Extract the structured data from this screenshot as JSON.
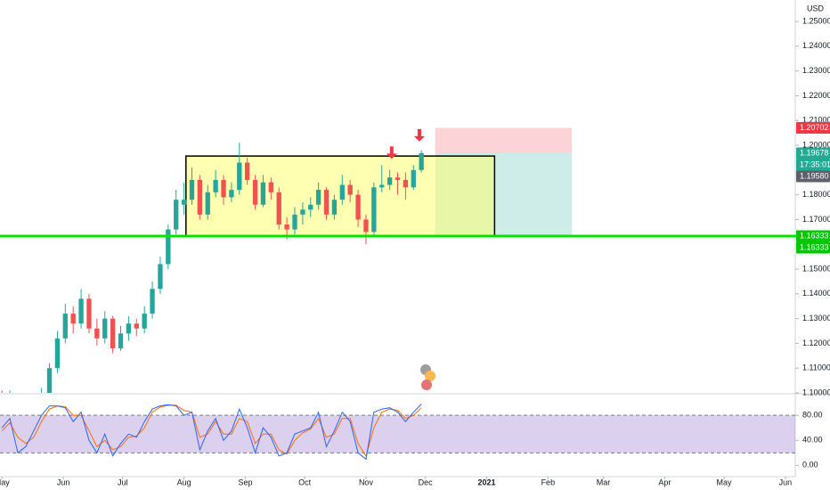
{
  "chart_data": {
    "type": "candlestick",
    "currency": "USD",
    "xlim": [
      -1,
      401
    ],
    "xticks": [
      {
        "value": 0,
        "label": "May"
      },
      {
        "value": 31,
        "label": "Jun"
      },
      {
        "value": 61,
        "label": "Jul"
      },
      {
        "value": 92,
        "label": "Aug"
      },
      {
        "value": 123,
        "label": "Sep"
      },
      {
        "value": 153,
        "label": "Oct"
      },
      {
        "value": 184,
        "label": "Nov"
      },
      {
        "value": 214,
        "label": "Dec"
      },
      {
        "value": 245,
        "label": "2021"
      },
      {
        "value": 276,
        "label": "Feb"
      },
      {
        "value": 304,
        "label": "Mar"
      },
      {
        "value": 335,
        "label": "Apr"
      },
      {
        "value": 365,
        "label": "May"
      },
      {
        "value": 396,
        "label": "Jun"
      }
    ],
    "ylim": [
      1.1,
      1.25866
    ],
    "yticks": [
      {
        "value": 1.25,
        "label": "1.25000"
      },
      {
        "value": 1.24,
        "label": "1.24000"
      },
      {
        "value": 1.23,
        "label": "1.23000"
      },
      {
        "value": 1.22,
        "label": "1.22000"
      },
      {
        "value": 1.21,
        "label": "1.21000"
      },
      {
        "value": 1.2,
        "label": "1.20000"
      },
      {
        "value": 1.18,
        "label": "1.18000"
      },
      {
        "value": 1.17,
        "label": "1.17000"
      },
      {
        "value": 1.15,
        "label": "1.15000"
      },
      {
        "value": 1.14,
        "label": "1.14000"
      },
      {
        "value": 1.13,
        "label": "1.13000"
      },
      {
        "value": 1.12,
        "label": "1.12000"
      },
      {
        "value": 1.11,
        "label": "1.11000"
      },
      {
        "value": 1.1,
        "label": "1.10000"
      }
    ],
    "up_color": "#26a69a",
    "down_color": "#ef5350",
    "candles": {
      "x": [
        0,
        4,
        8,
        12,
        16,
        20,
        24,
        28,
        32,
        36,
        40,
        44,
        48,
        52,
        56,
        60,
        64,
        68,
        72,
        76,
        80,
        84,
        88,
        92,
        96,
        100,
        104,
        108,
        112,
        116,
        120,
        124,
        128,
        132,
        136,
        140,
        144,
        148,
        152,
        156,
        160,
        164,
        168,
        172,
        176,
        180,
        184,
        188,
        192,
        196,
        200,
        204,
        208,
        212
      ],
      "ohlc": [
        [
          1.099,
          1.101,
          1.095,
          1.097
        ],
        [
          1.097,
          1.101,
          1.095,
          1.099
        ],
        [
          1.099,
          1.1,
          1.09,
          1.092
        ],
        [
          1.092,
          1.097,
          1.09,
          1.095
        ],
        [
          1.095,
          1.1,
          1.094,
          1.098
        ],
        [
          1.098,
          1.102,
          1.096,
          1.1
        ],
        [
          1.1,
          1.112,
          1.099,
          1.11
        ],
        [
          1.11,
          1.125,
          1.108,
          1.122
        ],
        [
          1.122,
          1.136,
          1.12,
          1.132
        ],
        [
          1.132,
          1.135,
          1.124,
          1.128
        ],
        [
          1.128,
          1.142,
          1.126,
          1.138
        ],
        [
          1.138,
          1.14,
          1.124,
          1.126
        ],
        [
          1.126,
          1.13,
          1.119,
          1.122
        ],
        [
          1.122,
          1.133,
          1.12,
          1.13
        ],
        [
          1.13,
          1.131,
          1.116,
          1.118
        ],
        [
          1.118,
          1.127,
          1.117,
          1.124
        ],
        [
          1.124,
          1.131,
          1.121,
          1.128
        ],
        [
          1.128,
          1.13,
          1.123,
          1.126
        ],
        [
          1.126,
          1.135,
          1.124,
          1.132
        ],
        [
          1.132,
          1.145,
          1.13,
          1.142
        ],
        [
          1.142,
          1.155,
          1.14,
          1.152
        ],
        [
          1.152,
          1.168,
          1.15,
          1.166
        ],
        [
          1.166,
          1.182,
          1.164,
          1.178
        ],
        [
          1.176,
          1.185,
          1.172,
          1.178
        ],
        [
          1.178,
          1.191,
          1.176,
          1.186
        ],
        [
          1.186,
          1.188,
          1.17,
          1.172
        ],
        [
          1.172,
          1.184,
          1.17,
          1.181
        ],
        [
          1.181,
          1.19,
          1.179,
          1.186
        ],
        [
          1.186,
          1.188,
          1.176,
          1.179
        ],
        [
          1.179,
          1.185,
          1.177,
          1.182
        ],
        [
          1.182,
          1.201,
          1.18,
          1.193
        ],
        [
          1.193,
          1.195,
          1.184,
          1.186
        ],
        [
          1.186,
          1.188,
          1.174,
          1.176
        ],
        [
          1.176,
          1.188,
          1.175,
          1.185
        ],
        [
          1.185,
          1.187,
          1.178,
          1.181
        ],
        [
          1.181,
          1.183,
          1.166,
          1.168
        ],
        [
          1.168,
          1.171,
          1.162,
          1.166
        ],
        [
          1.166,
          1.175,
          1.164,
          1.172
        ],
        [
          1.172,
          1.177,
          1.168,
          1.174
        ],
        [
          1.174,
          1.179,
          1.171,
          1.176
        ],
        [
          1.176,
          1.185,
          1.174,
          1.182
        ],
        [
          1.182,
          1.183,
          1.17,
          1.172
        ],
        [
          1.172,
          1.18,
          1.17,
          1.178
        ],
        [
          1.178,
          1.188,
          1.176,
          1.184
        ],
        [
          1.184,
          1.186,
          1.177,
          1.18
        ],
        [
          1.18,
          1.182,
          1.167,
          1.17
        ],
        [
          1.17,
          1.172,
          1.16,
          1.165
        ],
        [
          1.165,
          1.185,
          1.163,
          1.183
        ],
        [
          1.183,
          1.192,
          1.181,
          1.184
        ],
        [
          1.184,
          1.19,
          1.182,
          1.187
        ],
        [
          1.187,
          1.189,
          1.18,
          1.186
        ],
        [
          1.186,
          1.189,
          1.178,
          1.183
        ],
        [
          1.183,
          1.192,
          1.182,
          1.19
        ],
        [
          1.19,
          1.198,
          1.189,
          1.1968
        ]
      ]
    },
    "support_line": {
      "value": 1.16333,
      "color": "#00e600"
    },
    "range_box": {
      "x": [
        93,
        249
      ],
      "y": [
        1.19565,
        1.16333
      ],
      "color": "#ffff66"
    },
    "target_zone": {
      "x": [
        219,
        288
      ],
      "y": [
        1.19678,
        1.16333
      ],
      "color": "#22ab94"
    },
    "stop_zone": {
      "x": [
        219,
        288
      ],
      "y": [
        1.20702,
        1.19678
      ],
      "color": "#f23645"
    },
    "arrows": {
      "x": [
        197,
        211
      ],
      "y": [
        1.1945,
        1.2015
      ],
      "color": "#f23645"
    },
    "price_tags": [
      {
        "value": 1.20702,
        "label": "1.20702",
        "color": "#f23645"
      },
      {
        "value": 1.19678,
        "label": "1.19678",
        "color": "#22ab94"
      },
      {
        "value": 1.1958,
        "label": "1.19580",
        "color": "#5d606b"
      },
      {
        "value": 1.16333,
        "label": "1.16333",
        "color": "#00c800"
      },
      {
        "value": 1.16333,
        "label": "1.16333",
        "color": "#00c800"
      }
    ],
    "countdown": "17:35:01",
    "stochastic": {
      "ylim": [
        -18,
        113
      ],
      "yticks": [
        {
          "value": 80,
          "label": "80.00"
        },
        {
          "value": 40,
          "label": "40.00"
        },
        {
          "value": 0,
          "label": "0.00"
        }
      ],
      "bands": [
        20,
        80
      ],
      "band_color": "#7e57c2",
      "k": {
        "color": "#2962ff",
        "values": [
          60,
          75,
          20,
          30,
          55,
          80,
          95,
          95,
          92,
          70,
          85,
          40,
          20,
          50,
          15,
          35,
          50,
          45,
          70,
          90,
          95,
          97,
          95,
          80,
          85,
          25,
          55,
          75,
          40,
          55,
          90,
          60,
          20,
          60,
          45,
          15,
          20,
          50,
          55,
          60,
          85,
          30,
          55,
          85,
          70,
          20,
          10,
          85,
          90,
          92,
          85,
          70,
          85,
          98
        ]
      },
      "d": {
        "color": "#ff6d00",
        "values": [
          55,
          68,
          45,
          35,
          45,
          70,
          90,
          95,
          94,
          80,
          80,
          55,
          30,
          40,
          25,
          30,
          45,
          47,
          60,
          85,
          93,
          96,
          96,
          88,
          85,
          45,
          50,
          70,
          50,
          50,
          75,
          70,
          35,
          50,
          50,
          25,
          18,
          40,
          52,
          58,
          75,
          45,
          50,
          75,
          75,
          35,
          15,
          60,
          85,
          90,
          88,
          75,
          80,
          92
        ]
      }
    }
  }
}
